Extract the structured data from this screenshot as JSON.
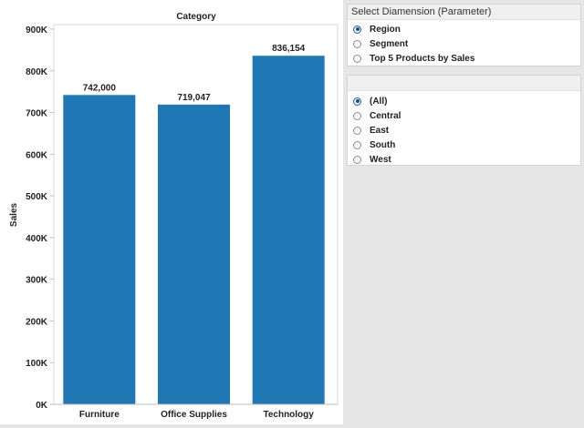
{
  "chart_data": {
    "type": "bar",
    "title": "Category",
    "categories": [
      "Furniture",
      "Office Supplies",
      "Technology"
    ],
    "values": [
      742000,
      719047,
      836154
    ],
    "data_labels": [
      "742,000",
      "719,047",
      "836,154"
    ],
    "xlabel": "",
    "ylabel": "Sales",
    "ylim": [
      0,
      900000
    ],
    "yticks": [
      0,
      100000,
      200000,
      300000,
      400000,
      500000,
      600000,
      700000,
      800000,
      900000
    ],
    "ytick_labels": [
      "0K",
      "100K",
      "200K",
      "300K",
      "400K",
      "500K",
      "600K",
      "700K",
      "800K",
      "900K"
    ],
    "bar_color": "#1f77b4",
    "grid": false
  },
  "dimension_parameter": {
    "title": "Select Diamension (Parameter)",
    "selected": "Region",
    "options": [
      "Region",
      "Segment",
      "Top 5 Products by Sales"
    ]
  },
  "region_filter": {
    "title": "",
    "selected": "(All)",
    "options": [
      "(All)",
      "Central",
      "East",
      "South",
      "West"
    ]
  },
  "colors": {
    "background": "#e6e6e6",
    "panel": "#ffffff",
    "bar": "#1f77b4",
    "radio_selected": "#1f4e8c"
  }
}
